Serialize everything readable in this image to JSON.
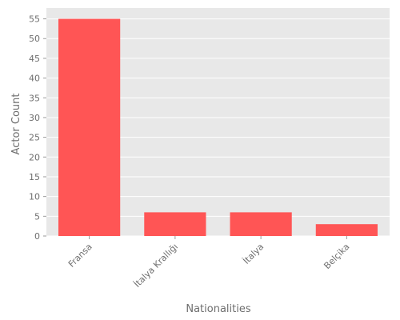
{
  "chart_data": {
    "type": "bar",
    "title": "",
    "xlabel": "Nationalities",
    "ylabel": "Actor Count",
    "categories": [
      "Fransa",
      "İtalya Krallığı",
      "İtalya",
      "Belçika"
    ],
    "values": [
      55,
      6,
      6,
      3
    ],
    "ylim": [
      0,
      57.75
    ],
    "yticks": [
      0,
      5,
      10,
      15,
      20,
      25,
      30,
      35,
      40,
      45,
      50,
      55
    ],
    "grid": true,
    "legend": "none",
    "colors": {
      "bar": "#ff5555",
      "plot_background": "#e8e8e8",
      "grid": "#ffffff",
      "text": "#6e6e6e"
    }
  }
}
